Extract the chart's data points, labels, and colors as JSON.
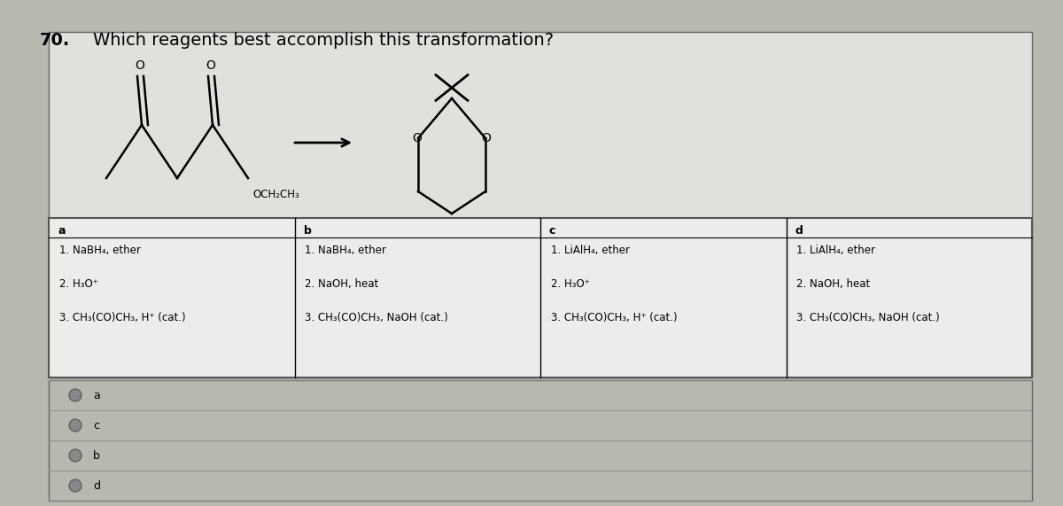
{
  "title_number": "70.",
  "title_text": "Which reagents best accomplish this transformation?",
  "background_color": "#b8b8b0",
  "panel_color": "#e0e0dc",
  "white_bg": "#ececea",
  "options": {
    "a": [
      "1. NaBH₄, ether",
      "2. H₃O⁺",
      "3. CH₃(CO)CH₃, H⁺ (cat.)"
    ],
    "b": [
      "1. NaBH₄, ether",
      "2. NaOH, heat",
      "3. CH₃(CO)CH₃, NaOH (cat.)"
    ],
    "c": [
      "1. LiAlH₄, ether",
      "2. H₃O⁺",
      "3. CH₃(CO)CH₃, H⁺ (cat.)"
    ],
    "d": [
      "1. LiAlH₄, ether",
      "2. NaOH, heat",
      "3. CH₃(CO)CH₃, NaOH (cat.)"
    ]
  },
  "radio_options": [
    "a",
    "c",
    "b",
    "d"
  ],
  "font_size_title": 14,
  "font_size_option_label": 9,
  "font_size_option_text": 8.5,
  "font_size_radio": 9
}
